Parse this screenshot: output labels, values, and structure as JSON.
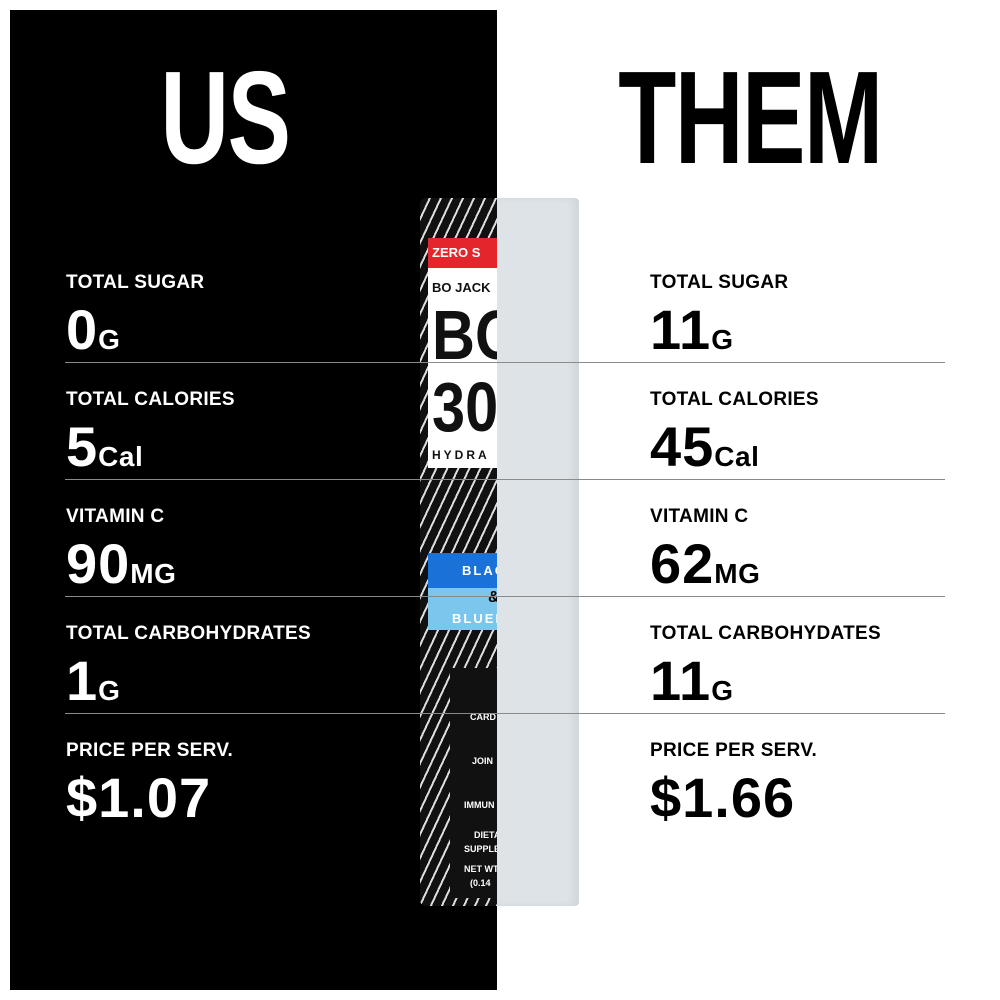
{
  "us": {
    "title": "US",
    "stats": [
      {
        "label": "TOTAL SUGAR",
        "value": "0",
        "unit": "G"
      },
      {
        "label": "TOTAL CALORIES",
        "value": "5",
        "unit": "Cal"
      },
      {
        "label": "VITAMIN C",
        "value": "90",
        "unit": "MG"
      },
      {
        "label": "TOTAL CARBOHYDRATES",
        "value": "1",
        "unit": "G"
      },
      {
        "label": "PRICE PER SERV.",
        "value": "$1.07",
        "unit": ""
      }
    ]
  },
  "them": {
    "title": "THEM",
    "stats": [
      {
        "label": "TOTAL SUGAR",
        "value": "11",
        "unit": "G"
      },
      {
        "label": "TOTAL CALORIES",
        "value": "45",
        "unit": "Cal"
      },
      {
        "label": "VITAMIN C",
        "value": "62",
        "unit": "MG"
      },
      {
        "label": "TOTAL CARBOHYDATES",
        "value": "11",
        "unit": "G"
      },
      {
        "label": "PRICE PER SERV.",
        "value": "$1.66",
        "unit": ""
      }
    ]
  },
  "packet": {
    "banner": "ZERO S",
    "brand_line": "BO JACK",
    "logo_top": "BO",
    "logo_bottom": "30",
    "sub": "HYDRA",
    "flavor_1": "BLAC",
    "amp": "&",
    "flavor_2": "BLUEB",
    "icons": [
      "CARD",
      "JOIN",
      "IMMUN"
    ],
    "footer_1": "DIETA",
    "footer_2": "SUPPLE",
    "net_1": "NET WT.",
    "net_2": "(0.14"
  },
  "colors": {
    "us_bg": "#000000",
    "them_bg": "#ffffff",
    "packet_red": "#e2262b",
    "packet_blue": "#1a72d8",
    "packet_light_blue": "#7cc6ee"
  }
}
